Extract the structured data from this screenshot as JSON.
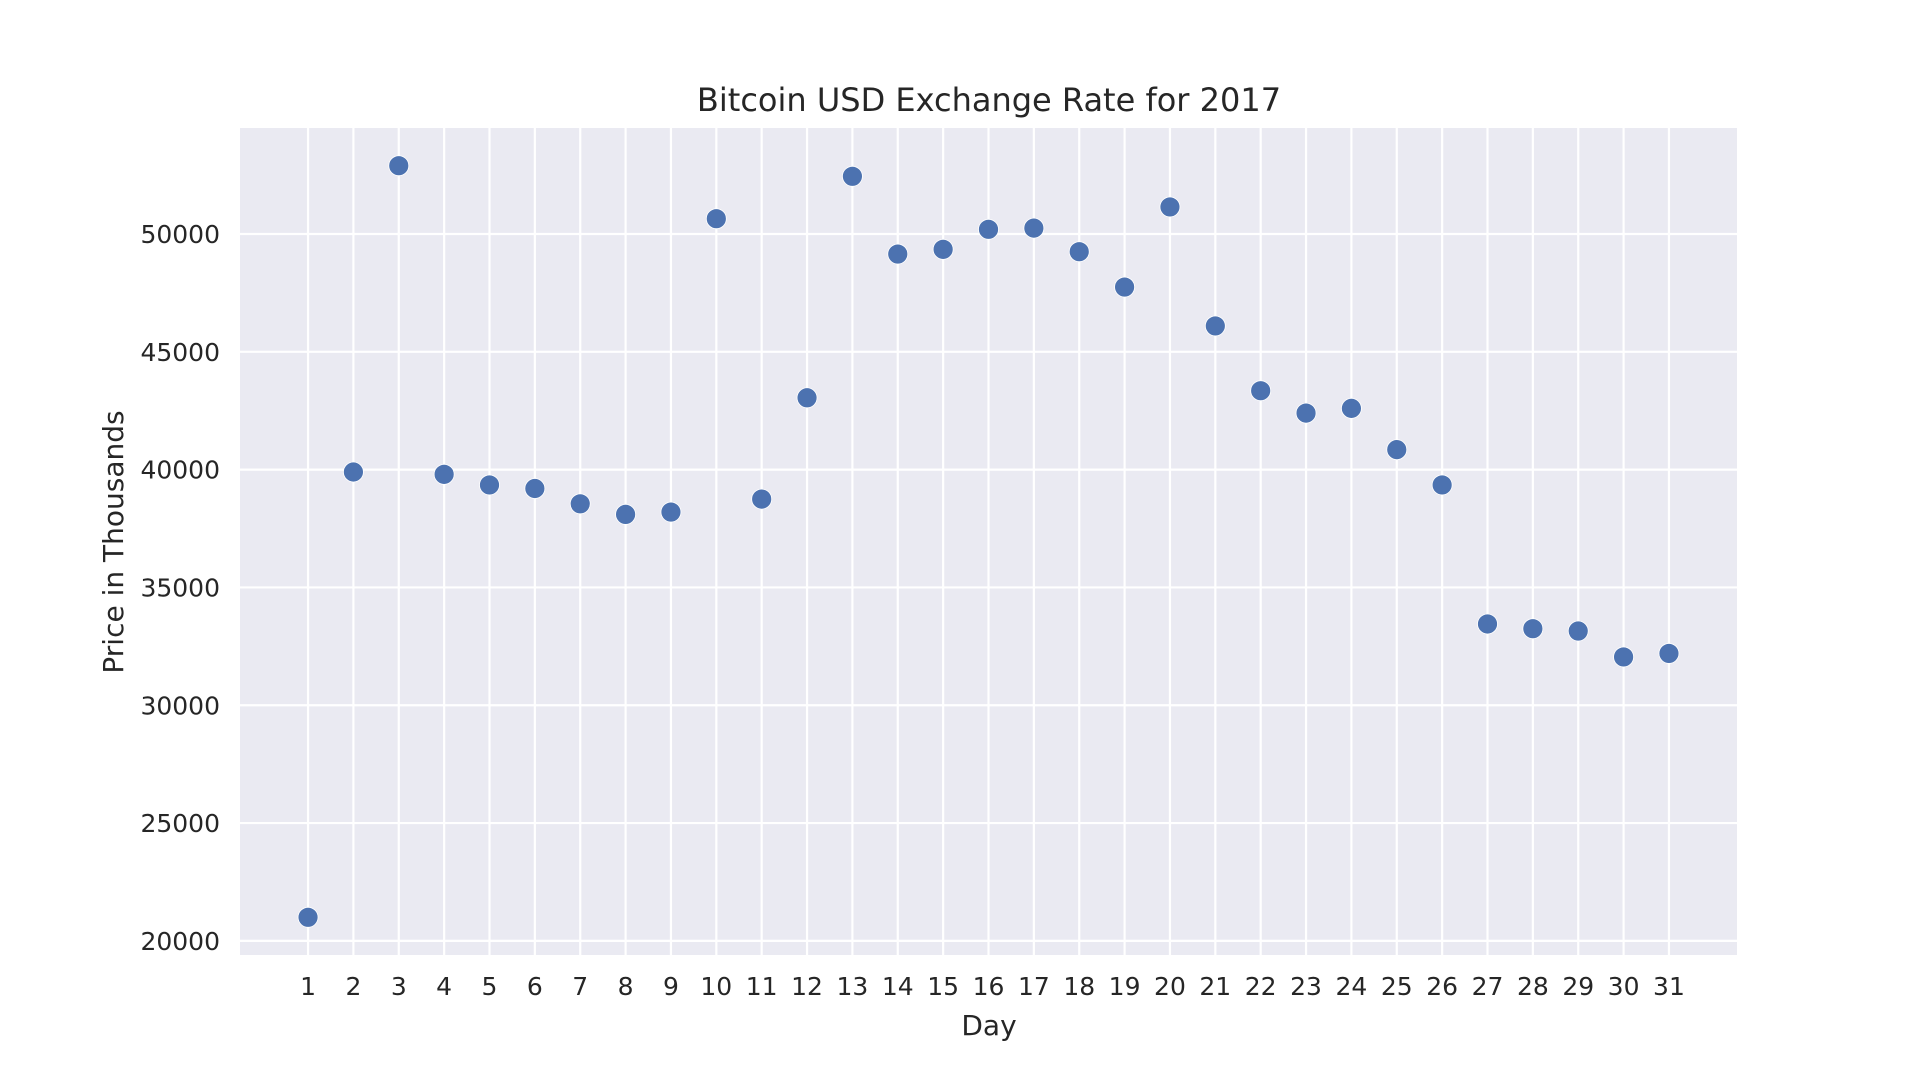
{
  "chart_data": {
    "type": "scatter",
    "title": "Bitcoin USD Exchange Rate for 2017",
    "xlabel": "Day",
    "ylabel": "Price in Thousands",
    "x": [
      1,
      2,
      3,
      4,
      5,
      6,
      7,
      8,
      9,
      10,
      11,
      12,
      13,
      14,
      15,
      16,
      17,
      18,
      19,
      20,
      21,
      22,
      23,
      24,
      25,
      26,
      27,
      28,
      29,
      30,
      31
    ],
    "y": [
      21000,
      39900,
      52900,
      39800,
      39350,
      39200,
      38550,
      38100,
      38200,
      50650,
      38750,
      43050,
      52450,
      49150,
      49350,
      50200,
      50250,
      49250,
      47750,
      51150,
      46100,
      43350,
      42400,
      42600,
      40850,
      39350,
      33450,
      33250,
      33150,
      32050,
      32200
    ],
    "xticks": [
      "1",
      "2",
      "3",
      "4",
      "5",
      "6",
      "7",
      "8",
      "9",
      "10",
      "11",
      "12",
      "13",
      "14",
      "15",
      "16",
      "17",
      "18",
      "19",
      "20",
      "21",
      "22",
      "23",
      "24",
      "25",
      "26",
      "27",
      "28",
      "29",
      "30",
      "31"
    ],
    "yticks": [
      20000,
      25000,
      30000,
      35000,
      40000,
      45000,
      50000
    ],
    "xlim": [
      -0.5,
      32.5
    ],
    "ylim": [
      19400,
      54500
    ],
    "grid": true,
    "colors": {
      "background": "#eaeaf2",
      "grid": "#ffffff",
      "marker": "#4c72b0"
    }
  }
}
